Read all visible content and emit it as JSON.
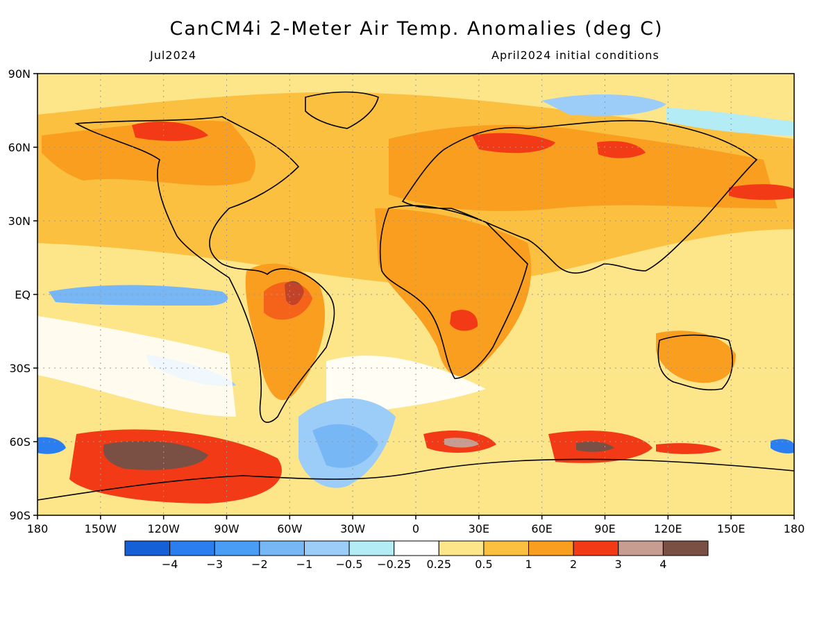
{
  "header": {
    "title": "CanCM4i 2-Meter Air Temp. Anomalies (deg C)",
    "valid_month": "Jul2024",
    "init_label": "April2024 initial conditions"
  },
  "axes": {
    "lat_labels": [
      "90N",
      "60N",
      "30N",
      "EQ",
      "30S",
      "60S",
      "90S"
    ],
    "lat_values": [
      90,
      60,
      30,
      0,
      -30,
      -60,
      -90
    ],
    "lon_labels": [
      "180",
      "150W",
      "120W",
      "90W",
      "60W",
      "30W",
      "0",
      "30E",
      "60E",
      "90E",
      "120E",
      "150E",
      "180"
    ],
    "lon_values": [
      -180,
      -150,
      -120,
      -90,
      -60,
      -30,
      0,
      30,
      60,
      90,
      120,
      150,
      180
    ],
    "grid": "dotted"
  },
  "colorbar": {
    "colors": [
      "#1560d6",
      "#2b7ef0",
      "#4a9df5",
      "#78b7f6",
      "#9ccdf8",
      "#b4ecf6",
      "#ffffff",
      "#fde58a",
      "#fcc040",
      "#f99e1f",
      "#f23a16",
      "#c79c91",
      "#7a5044"
    ],
    "labels": [
      "−4",
      "−3",
      "−2",
      "−1",
      "−0.5",
      "−0.25",
      "0.25",
      "0.5",
      "1",
      "2",
      "3",
      "4"
    ]
  }
}
